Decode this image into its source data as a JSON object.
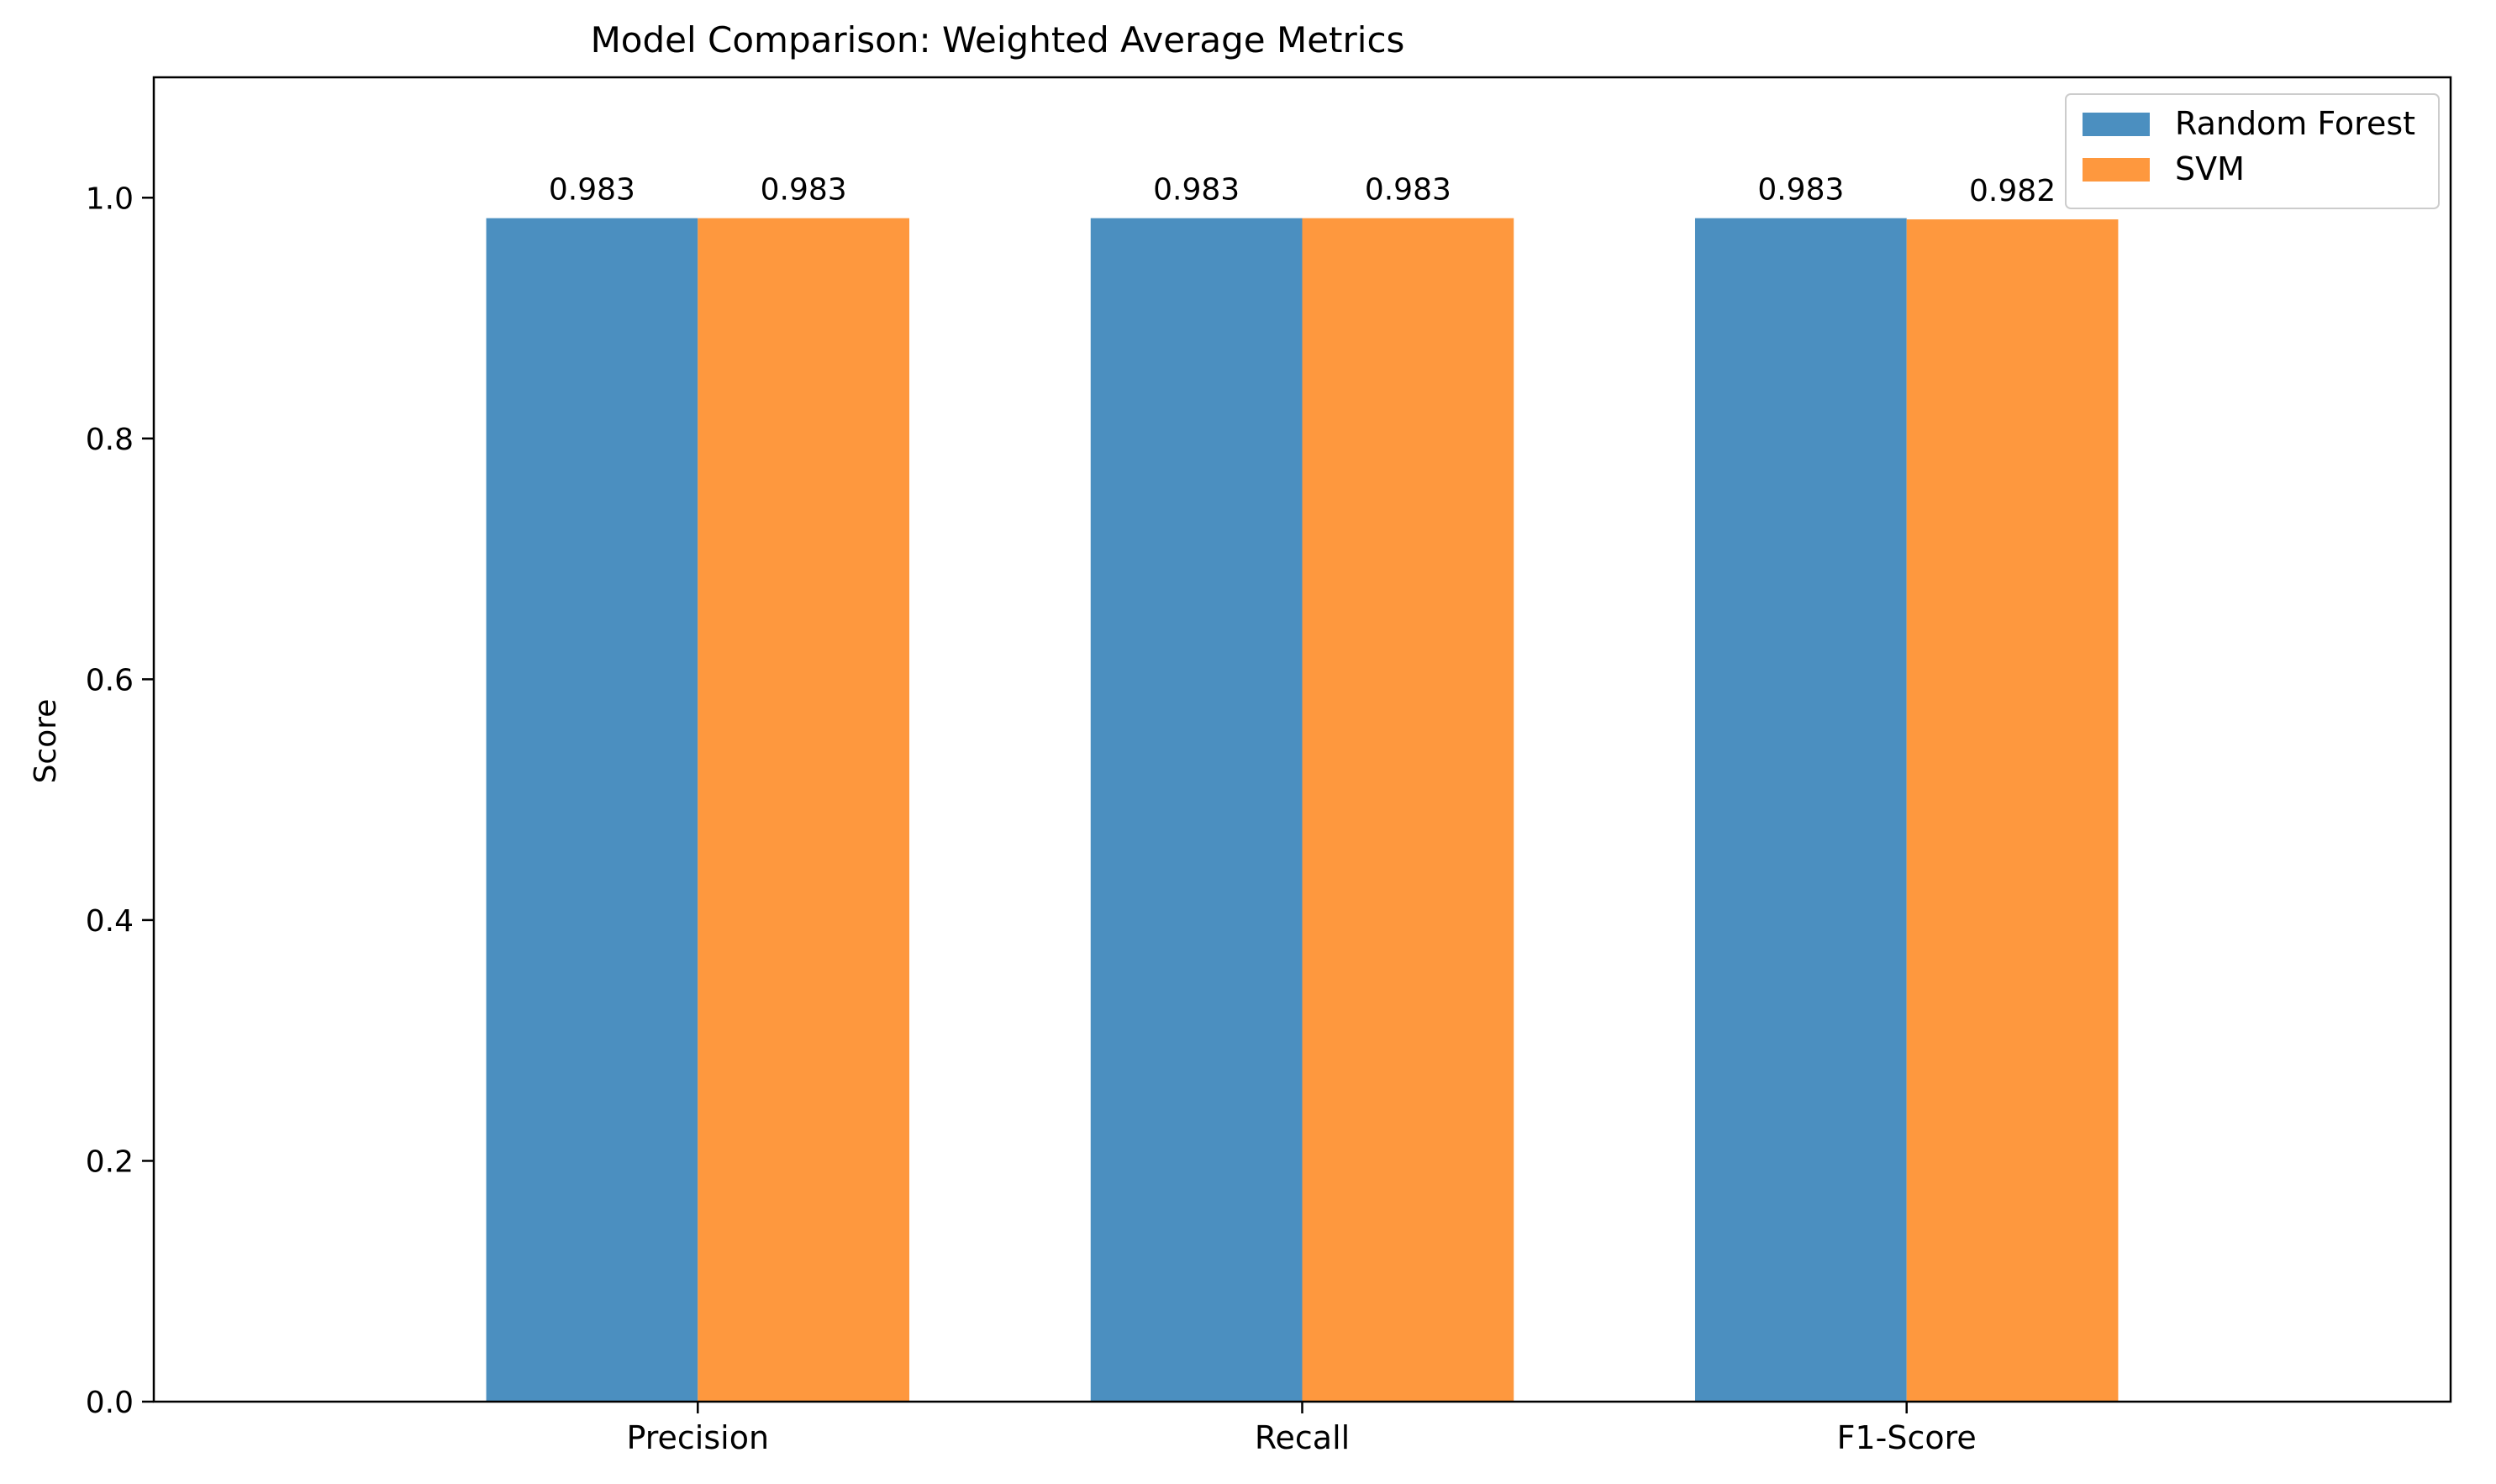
{
  "chart_data": {
    "type": "bar",
    "title": "Model Comparison: Weighted Average Metrics",
    "xlabel": "",
    "ylabel": "Score",
    "categories": [
      "Precision",
      "Recall",
      "F1-Score"
    ],
    "series": [
      {
        "name": "Random Forest",
        "color": "#4b8fc0",
        "values": [
          0.983,
          0.983,
          0.983
        ],
        "labels": [
          "0.983",
          "0.983",
          "0.983"
        ]
      },
      {
        "name": "SVM",
        "color": "#fe983e",
        "values": [
          0.983,
          0.983,
          0.982
        ],
        "labels": [
          "0.983",
          "0.983",
          "0.982"
        ]
      }
    ],
    "ylim": [
      0,
      1.1
    ],
    "yticks": [
      0.0,
      0.2,
      0.4,
      0.6,
      0.8,
      1.0
    ],
    "ytick_labels": [
      "0.0",
      "0.2",
      "0.4",
      "0.6",
      "0.8",
      "1.0"
    ],
    "grid": false,
    "legend_position": "top-right"
  }
}
